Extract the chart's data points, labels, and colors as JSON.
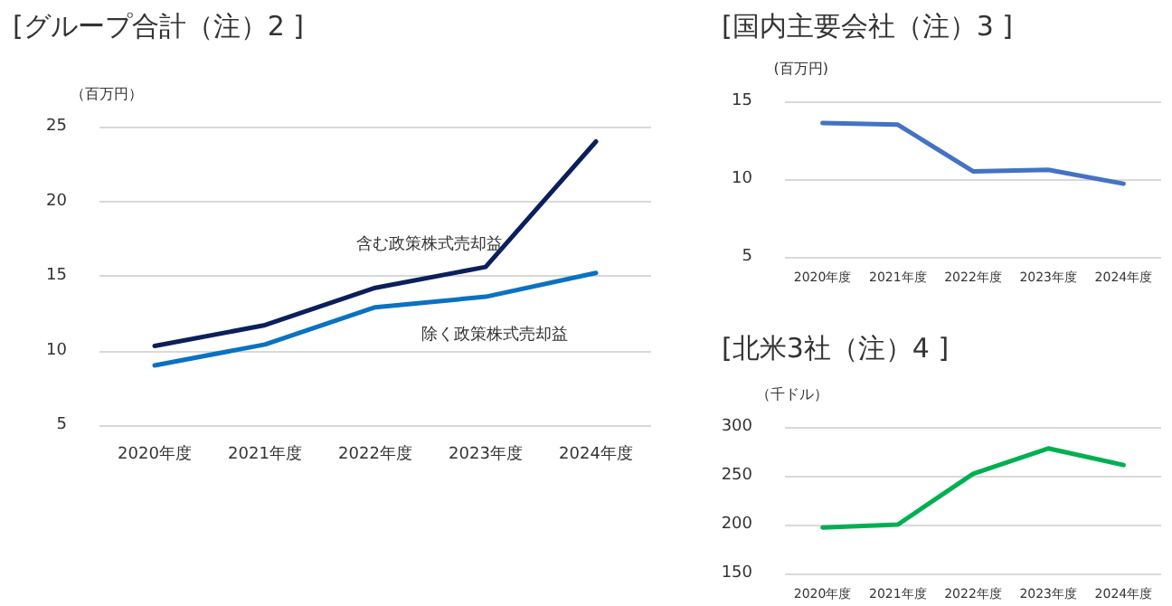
{
  "chart_data": [
    {
      "type": "line",
      "title": "[グループ合計（注）2 ]",
      "ylabel": "（百万円）",
      "categories": [
        "2020年度",
        "2021年度",
        "2022年度",
        "2023年度",
        "2024年度"
      ],
      "series": [
        {
          "name": "含む政策株式売却益",
          "color": "#0b1f5c",
          "values": [
            10.3,
            11.7,
            14.2,
            15.6,
            24.0
          ]
        },
        {
          "name": "除く政策株式売却益",
          "color": "#0a72c2",
          "values": [
            9.0,
            10.4,
            12.9,
            13.6,
            15.2
          ]
        }
      ],
      "ylim": [
        5,
        25
      ],
      "yticks": [
        5,
        10,
        15,
        20,
        25
      ],
      "grid": "y"
    },
    {
      "type": "line",
      "title": "[国内主要会社（注）3 ]",
      "ylabel": "(百万円)",
      "categories": [
        "2020年度",
        "2021年度",
        "2022年度",
        "2023年度",
        "2024年度"
      ],
      "series": [
        {
          "color": "#4472c4",
          "values": [
            13.6,
            13.5,
            10.5,
            10.6,
            9.7
          ]
        }
      ],
      "ylim": [
        5,
        15
      ],
      "yticks": [
        5,
        10,
        15
      ],
      "grid": "y"
    },
    {
      "type": "line",
      "title": "[北米3社（注）4 ]",
      "ylabel": "（千ドル）",
      "categories": [
        "2020年度",
        "2021年度",
        "2022年度",
        "2023年度",
        "2024年度"
      ],
      "series": [
        {
          "color": "#00b050",
          "values": [
            197,
            200,
            252,
            278,
            261
          ]
        }
      ],
      "ylim": [
        150,
        300
      ],
      "yticks": [
        150,
        200,
        250,
        300
      ],
      "grid": "y"
    }
  ]
}
